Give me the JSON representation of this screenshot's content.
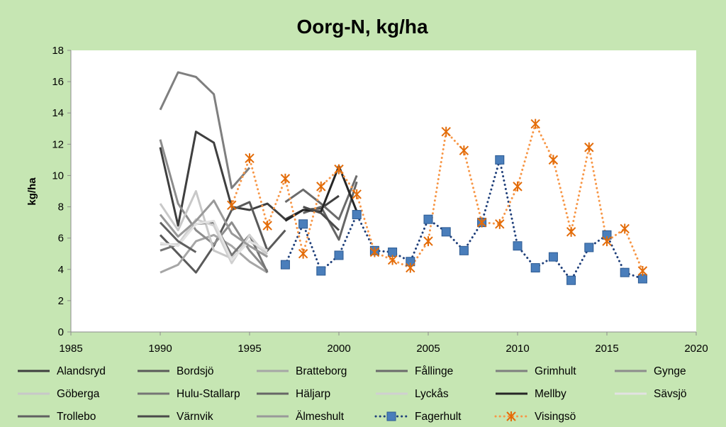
{
  "chart_data": {
    "type": "line",
    "title": "Oorg-N, kg/ha",
    "xlabel": "",
    "ylabel": "kg/ha",
    "xlim": [
      1985,
      2020
    ],
    "ylim": [
      0,
      18
    ],
    "x_ticks": [
      1985,
      1990,
      1995,
      2000,
      2005,
      2010,
      2015,
      2020
    ],
    "y_ticks": [
      0,
      2,
      4,
      6,
      8,
      10,
      12,
      14,
      16,
      18
    ],
    "grid": false,
    "legend_position": "bottom",
    "series": [
      {
        "name": "Alandsryd",
        "color": "#3f3f3f",
        "style": "solid",
        "points": [
          [
            1990,
            11.8
          ],
          [
            1991,
            6.8
          ],
          [
            1992,
            12.8
          ],
          [
            1993,
            12.1
          ],
          [
            1994,
            8.0
          ],
          [
            1995,
            7.8
          ],
          [
            1996,
            8.2
          ],
          [
            1997,
            7.2
          ],
          [
            1998,
            7.8
          ],
          [
            1999,
            7.9
          ],
          [
            2000,
            8.7
          ]
        ]
      },
      {
        "name": "Bordsjö",
        "color": "#5a5a5a",
        "style": "solid",
        "points": [
          [
            1990,
            6.2
          ],
          [
            1991,
            5.0
          ],
          [
            1992,
            3.8
          ],
          [
            1993,
            5.5
          ],
          [
            1994,
            7.8
          ],
          [
            1995,
            8.3
          ],
          [
            1996,
            5.2
          ],
          [
            1997,
            6.5
          ]
        ]
      },
      {
        "name": "Bratteborg",
        "color": "#a6a6a6",
        "style": "solid",
        "points": [
          [
            1990,
            3.8
          ],
          [
            1991,
            4.3
          ],
          [
            1992,
            5.8
          ],
          [
            1993,
            6.2
          ],
          [
            1994,
            5.5
          ],
          [
            1995,
            4.5
          ],
          [
            1996,
            3.8
          ]
        ]
      },
      {
        "name": "Fållinge",
        "color": "#6b6b6b",
        "style": "solid",
        "points": [
          [
            1997,
            8.3
          ],
          [
            1998,
            9.1
          ],
          [
            1999,
            8.2
          ],
          [
            2000,
            7.2
          ],
          [
            2001,
            10.0
          ]
        ]
      },
      {
        "name": "Grimhult",
        "color": "#7f7f7f",
        "style": "solid",
        "points": [
          [
            1990,
            14.2
          ],
          [
            1991,
            16.6
          ],
          [
            1992,
            16.3
          ],
          [
            1993,
            15.2
          ],
          [
            1994,
            9.2
          ],
          [
            1995,
            10.5
          ]
        ]
      },
      {
        "name": "Gynge",
        "color": "#8c8c8c",
        "style": "solid",
        "points": [
          [
            1990,
            12.3
          ],
          [
            1991,
            8.2
          ],
          [
            1992,
            6.5
          ],
          [
            1993,
            5.6
          ],
          [
            1994,
            7.0
          ],
          [
            1995,
            5.2
          ],
          [
            1996,
            3.9
          ]
        ]
      },
      {
        "name": "Göberga",
        "color": "#c8c8c8",
        "style": "solid",
        "points": [
          [
            1990,
            8.2
          ],
          [
            1991,
            6.5
          ],
          [
            1992,
            9.0
          ],
          [
            1993,
            5.2
          ],
          [
            1994,
            4.7
          ],
          [
            1995,
            5.8
          ],
          [
            1996,
            5.0
          ]
        ]
      },
      {
        "name": "Hulu-Stallarp",
        "color": "#757575",
        "style": "solid",
        "points": [
          [
            1990,
            5.2
          ],
          [
            1991,
            5.6
          ],
          [
            1992,
            6.9
          ],
          [
            1993,
            7.0
          ],
          [
            1994,
            4.9
          ],
          [
            1995,
            6.2
          ],
          [
            1996,
            3.8
          ]
        ]
      },
      {
        "name": "Häljarp",
        "color": "#666666",
        "style": "solid",
        "points": [
          [
            1998,
            7.6
          ],
          [
            1999,
            8.0
          ],
          [
            2000,
            5.9
          ],
          [
            2001,
            9.6
          ]
        ]
      },
      {
        "name": "Lyckås",
        "color": "#d0d0d0",
        "style": "solid",
        "points": [
          [
            1990,
            5.6
          ],
          [
            1991,
            5.6
          ],
          [
            1992,
            7.2
          ],
          [
            1993,
            6.8
          ],
          [
            1994,
            4.4
          ],
          [
            1995,
            6.2
          ],
          [
            1996,
            4.8
          ]
        ]
      },
      {
        "name": "Mellby",
        "color": "#262626",
        "style": "solid",
        "points": [
          [
            1997,
            7.1
          ],
          [
            1998,
            7.8
          ],
          [
            1999,
            7.7
          ],
          [
            2000,
            10.6
          ],
          [
            2001,
            7.7
          ]
        ]
      },
      {
        "name": "Sävsjö",
        "color": "#e2e2e2",
        "style": "solid",
        "points": [
          [
            1990,
            5.7
          ],
          [
            1991,
            5.5
          ],
          [
            1992,
            6.9
          ],
          [
            1993,
            7.1
          ],
          [
            1994,
            4.6
          ],
          [
            1995,
            5.8
          ],
          [
            1996,
            5.2
          ]
        ]
      },
      {
        "name": "Trollebo",
        "color": "#606060",
        "style": "solid",
        "points": [
          [
            1990,
            7.0
          ],
          [
            1991,
            5.8
          ],
          [
            1992,
            5.1
          ]
        ]
      },
      {
        "name": "Värnvik",
        "color": "#4a4a4a",
        "style": "solid",
        "points": [
          [
            1998,
            8.0
          ],
          [
            1999,
            7.6
          ],
          [
            2000,
            6.5
          ]
        ]
      },
      {
        "name": "Älmeshult",
        "color": "#999999",
        "style": "solid",
        "points": [
          [
            1990,
            7.5
          ],
          [
            1991,
            6.1
          ],
          [
            1992,
            7.1
          ],
          [
            1993,
            8.4
          ],
          [
            1994,
            6.3
          ],
          [
            1995,
            5.5
          ],
          [
            1996,
            4.8
          ]
        ]
      },
      {
        "name": "Fagerhult",
        "color": "#1f3f7a",
        "style": "dotted",
        "marker": "square",
        "marker_color": "#4a7ebb",
        "points": [
          [
            1997,
            4.3
          ],
          [
            1998,
            6.9
          ],
          [
            1999,
            3.9
          ],
          [
            2000,
            4.9
          ],
          [
            2001,
            7.5
          ],
          [
            2002,
            5.2
          ],
          [
            2003,
            5.1
          ],
          [
            2004,
            4.5
          ],
          [
            2005,
            7.2
          ],
          [
            2006,
            6.4
          ],
          [
            2007,
            5.2
          ],
          [
            2008,
            7.0
          ],
          [
            2009,
            11.0
          ],
          [
            2010,
            5.5
          ],
          [
            2011,
            4.1
          ],
          [
            2012,
            4.8
          ],
          [
            2013,
            3.3
          ],
          [
            2014,
            5.4
          ],
          [
            2015,
            6.2
          ],
          [
            2016,
            3.8
          ],
          [
            2017,
            3.4
          ]
        ]
      },
      {
        "name": "Visingsö",
        "color": "#f79646",
        "style": "dotted",
        "marker": "asterisk",
        "marker_color": "#e36c09",
        "points": [
          [
            1994,
            8.1
          ],
          [
            1995,
            11.1
          ],
          [
            1996,
            6.8
          ],
          [
            1997,
            9.8
          ],
          [
            1998,
            5.0
          ],
          [
            1999,
            9.3
          ],
          [
            2000,
            10.4
          ],
          [
            2001,
            8.8
          ],
          [
            2002,
            5.1
          ],
          [
            2003,
            4.6
          ],
          [
            2004,
            4.1
          ],
          [
            2005,
            5.8
          ],
          [
            2006,
            12.8
          ],
          [
            2007,
            11.6
          ],
          [
            2008,
            7.0
          ],
          [
            2009,
            6.9
          ],
          [
            2010,
            9.3
          ],
          [
            2011,
            13.3
          ],
          [
            2012,
            11.0
          ],
          [
            2013,
            6.4
          ],
          [
            2014,
            11.8
          ],
          [
            2015,
            5.8
          ],
          [
            2016,
            6.6
          ],
          [
            2017,
            3.9
          ]
        ]
      }
    ]
  }
}
